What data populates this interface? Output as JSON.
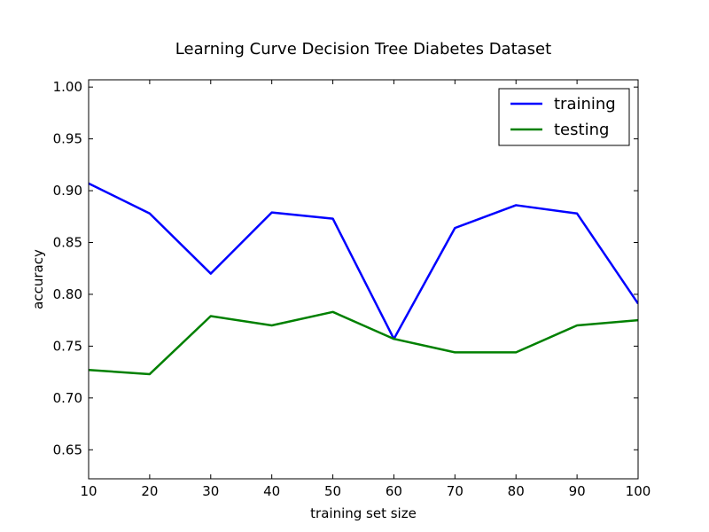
{
  "chart_data": {
    "type": "line",
    "title": "Learning Curve Decision Tree Diabetes Dataset",
    "xlabel": "training set size",
    "ylabel": "accuracy",
    "x": [
      10,
      20,
      30,
      40,
      50,
      60,
      70,
      80,
      90,
      100
    ],
    "xlim": [
      10,
      100
    ],
    "ylim": [
      0.622,
      1.007
    ],
    "xticks": [
      10,
      20,
      30,
      40,
      50,
      60,
      70,
      80,
      90,
      100
    ],
    "xtick_labels": [
      "10",
      "20",
      "30",
      "40",
      "50",
      "60",
      "70",
      "80",
      "90",
      "100"
    ],
    "yticks": [
      0.65,
      0.7,
      0.75,
      0.8,
      0.85,
      0.9,
      0.95,
      1.0
    ],
    "ytick_labels": [
      "0.65",
      "0.70",
      "0.75",
      "0.80",
      "0.85",
      "0.90",
      "0.95",
      "1.00"
    ],
    "grid": false,
    "legend_position": "top-right",
    "series": [
      {
        "name": "training",
        "color": "#0000ff",
        "values": [
          0.907,
          0.878,
          0.82,
          0.879,
          0.873,
          0.757,
          0.864,
          0.886,
          0.878,
          0.791
        ]
      },
      {
        "name": "testing",
        "color": "#008000",
        "values": [
          0.727,
          0.723,
          0.779,
          0.77,
          0.783,
          0.757,
          0.744,
          0.744,
          0.77,
          0.775
        ]
      }
    ]
  }
}
